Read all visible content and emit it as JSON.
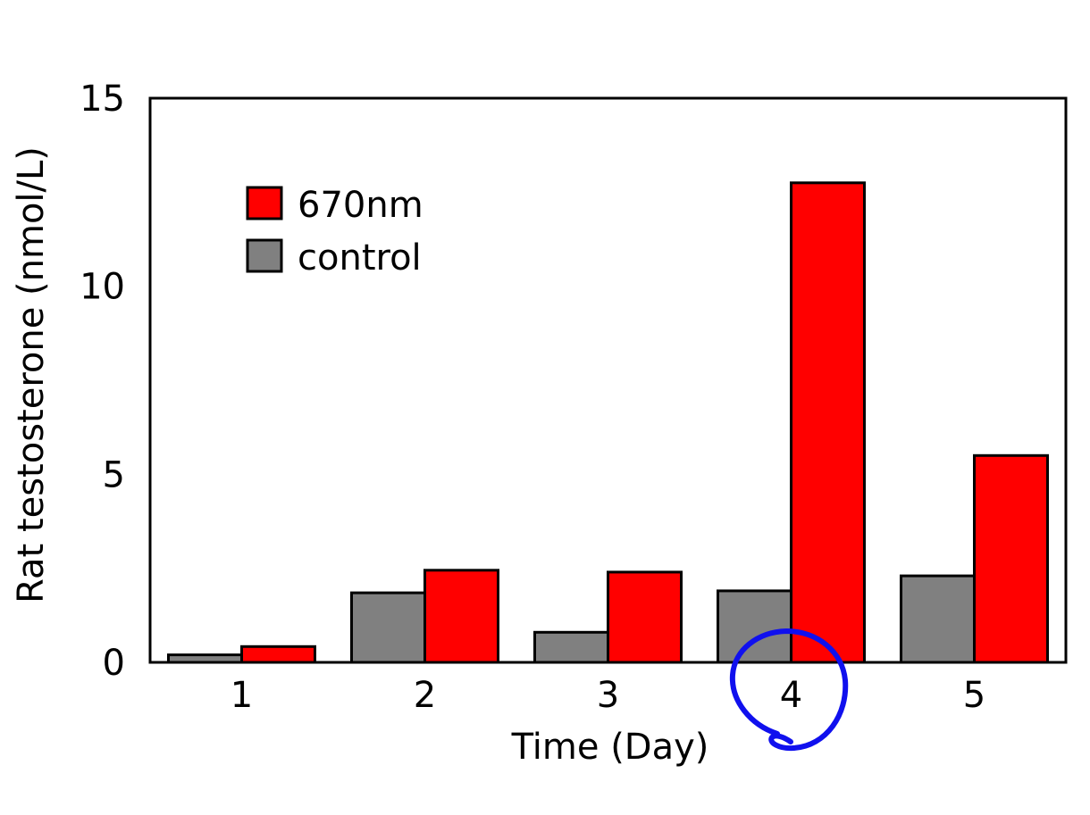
{
  "chart_data": {
    "type": "bar",
    "categories": [
      "1",
      "2",
      "3",
      "4",
      "5"
    ],
    "series": [
      {
        "name": "control",
        "color": "#808080",
        "values": [
          0.2,
          1.85,
          0.8,
          1.9,
          2.3
        ]
      },
      {
        "name": "670nm",
        "color": "#ff0000",
        "values": [
          0.42,
          2.45,
          2.4,
          12.75,
          5.5
        ]
      }
    ],
    "xlabel": "Time (Day)",
    "ylabel": "Rat testosterone (nmol/L)",
    "ylim": [
      0,
      15
    ],
    "yticks": [
      "0",
      "5",
      "10",
      "15"
    ],
    "legend_position": "top-left",
    "legend_order": [
      "670nm",
      "control"
    ],
    "grid": false,
    "annotation": {
      "type": "hand-drawn circle",
      "target_category": "4",
      "color": "#1010ee"
    }
  }
}
